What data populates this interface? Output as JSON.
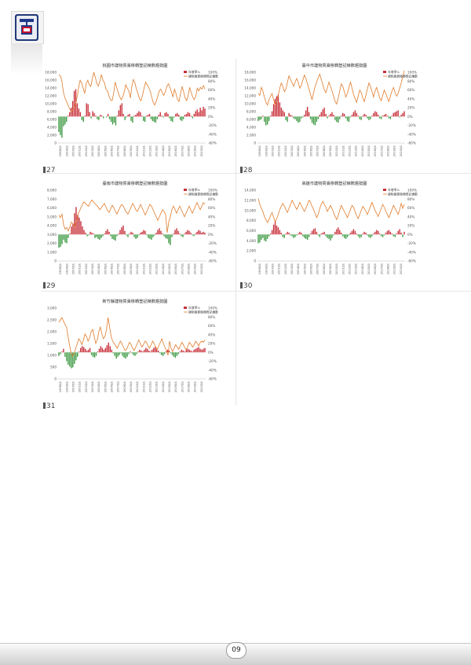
{
  "page": {
    "number": "09"
  },
  "chart_data": [
    {
      "type": "bar",
      "figure_label": "27",
      "title": "桃園市建物買賣移轉登記棟數趨勢圖",
      "legend": [
        "年增率%",
        "建物買賣移轉登記棟數"
      ],
      "y_left": [
        0,
        16000
      ],
      "y_left_ticks": [
        "0",
        "2,000",
        "4,000",
        "6,000",
        "8,000",
        "10,000",
        "12,000",
        "14,000",
        "16,000",
        "18,000"
      ],
      "y_right_ticks": [
        "-60%",
        "-40%",
        "-20%",
        "0%",
        "20%",
        "40%",
        "60%",
        "80%",
        "100%"
      ],
      "x_ticks": [
        "1998Q1",
        "1999Q1",
        "2000Q1",
        "2001Q1",
        "2002Q1",
        "2003Q1",
        "2004Q1",
        "2005Q1",
        "2006Q1",
        "2007Q1",
        "2008Q1",
        "2009Q1",
        "2010Q1",
        "2011Q1",
        "2012Q1",
        "2013Q1",
        "2014Q1",
        "2015Q1",
        "2016Q1",
        "2017Q1",
        "2018Q1",
        "2019Q1",
        "2020Q1"
      ],
      "line": [
        15500,
        15200,
        14000,
        11500,
        10200,
        9500,
        8600,
        7800,
        7200,
        7400,
        8000,
        8800,
        10400,
        12600,
        14200,
        13600,
        12400,
        11200,
        13500,
        14200,
        13200,
        12800,
        14500,
        16000,
        14800,
        13500,
        12900,
        14000,
        15500,
        14200,
        13600,
        12200,
        11800,
        10600,
        9800,
        9600,
        11200,
        13800,
        12600,
        11400,
        10500,
        9800,
        10400,
        11600,
        13200,
        12400,
        11800,
        10200,
        12800,
        14400,
        13600,
        12200,
        11200,
        10000,
        9600,
        10800,
        12400,
        13800,
        13200,
        12600,
        11800,
        10500,
        9200,
        8600,
        9400,
        10600,
        11800,
        12200,
        11400,
        10800,
        11600,
        12800,
        13400,
        12600,
        11600,
        10400,
        12200,
        11200,
        9800,
        9400,
        11200,
        12800,
        11600,
        10200,
        9600,
        10800,
        12600,
        11400,
        10400,
        9800,
        10600,
        12400,
        11800,
        12600,
        12200,
        13000,
        12200
      ],
      "bars": [
        -35,
        -42,
        -48,
        -22,
        -18,
        -12,
        2,
        10,
        20,
        35,
        58,
        62,
        30,
        18,
        10,
        -8,
        -12,
        2,
        30,
        28,
        10,
        -4,
        12,
        8,
        2,
        -6,
        -8,
        4,
        2,
        -4,
        0,
        -2,
        6,
        -6,
        -12,
        -18,
        -14,
        -20,
        2,
        14,
        26,
        30,
        6,
        -8,
        -2,
        4,
        6,
        -10,
        -14,
        2,
        4,
        8,
        12,
        10,
        2,
        -10,
        -12,
        2,
        4,
        6,
        -6,
        -10,
        -12,
        -14,
        -6,
        4,
        10,
        2,
        -2,
        8,
        10,
        6,
        -4,
        -10,
        -12,
        -2,
        6,
        8,
        4,
        -8,
        -10,
        -6,
        4,
        6,
        10,
        8,
        2,
        -4,
        6,
        12,
        16,
        10,
        20,
        14,
        22,
        18
      ]
    },
    {
      "type": "bar",
      "figure_label": "28",
      "title": "臺中市建物買賣移轉登記棟數趨勢圖",
      "legend": [
        "年增率%",
        "建物買賣移轉登記棟數"
      ],
      "y_left": [
        0,
        16000
      ],
      "y_left_ticks": [
        "0",
        "2,000",
        "4,000",
        "6,000",
        "8,000",
        "10,000",
        "12,000",
        "14,000",
        "16,000",
        "18,000"
      ],
      "y_right_ticks": [
        "-60%",
        "-40%",
        "-20%",
        "0%",
        "20%",
        "40%",
        "60%",
        "80%",
        "100%"
      ],
      "x_ticks": [
        "1998Q1",
        "1999Q1",
        "2000Q1",
        "2001Q1",
        "2002Q1",
        "2003Q1",
        "2004Q1",
        "2005Q1",
        "2006Q1",
        "2007Q1",
        "2008Q1",
        "2009Q1",
        "2010Q1",
        "2011Q1",
        "2012Q1",
        "2013Q1",
        "2014Q1",
        "2015Q1",
        "2016Q1",
        "2017Q1",
        "2018Q1",
        "2019Q1",
        "2020Q1"
      ],
      "line": [
        11200,
        10800,
        12600,
        11800,
        10400,
        9200,
        8600,
        9800,
        10600,
        11200,
        9800,
        8600,
        9400,
        10800,
        12400,
        13600,
        12800,
        11600,
        12200,
        13800,
        15200,
        14400,
        13600,
        12800,
        13800,
        14600,
        13800,
        12400,
        13000,
        14200,
        15400,
        14600,
        13400,
        12200,
        11000,
        9800,
        11400,
        12800,
        13800,
        14800,
        15600,
        14400,
        13200,
        12000,
        11400,
        12600,
        13800,
        12800,
        11800,
        10600,
        9400,
        8800,
        10200,
        11800,
        13400,
        12800,
        11600,
        10400,
        11200,
        12600,
        13800,
        12400,
        11000,
        10000,
        9200,
        10600,
        12000,
        11400,
        10200,
        9400,
        10800,
        12200,
        13600,
        12800,
        11600,
        10400,
        11800,
        12600,
        11400,
        10200,
        9600,
        10800,
        12000,
        11200,
        10200,
        9400,
        10600,
        11800,
        12600,
        11400,
        10600,
        11200,
        12400,
        13600,
        15000,
        16400
      ],
      "bars": [
        -10,
        -8,
        -6,
        2,
        -12,
        -20,
        -18,
        -10,
        2,
        12,
        28,
        40,
        46,
        50,
        32,
        20,
        14,
        10,
        -8,
        -12,
        8,
        4,
        2,
        -4,
        -6,
        -10,
        -14,
        -12,
        -4,
        -2,
        4,
        14,
        22,
        10,
        -6,
        -14,
        -18,
        -20,
        -12,
        -6,
        4,
        10,
        16,
        20,
        6,
        -4,
        2,
        6,
        10,
        4,
        -8,
        -12,
        -14,
        -6,
        2,
        8,
        6,
        -4,
        -10,
        -12,
        -2,
        4,
        10,
        14,
        8,
        2,
        -6,
        -8,
        2,
        6,
        4,
        -4,
        -8,
        -6,
        2,
        8,
        12,
        10,
        4,
        -4,
        -6,
        2,
        4,
        6,
        2,
        -4,
        -6,
        2,
        8,
        10,
        12,
        14,
        -2,
        4,
        8,
        12
      ]
    },
    {
      "type": "bar",
      "figure_label": "29",
      "title": "臺南市建物買賣移轉登記棟數趨勢圖",
      "legend": [
        "年增率%",
        "建物買賣移轉登記棟數"
      ],
      "y_left": [
        0,
        8000
      ],
      "y_left_ticks": [
        "0",
        "1,000",
        "2,000",
        "3,000",
        "4,000",
        "5,000",
        "6,000",
        "7,000",
        "8,000"
      ],
      "y_right_ticks": [
        "-60%",
        "-40%",
        "-20%",
        "0%",
        "20%",
        "40%",
        "60%",
        "80%",
        "100%"
      ],
      "x_ticks": [
        "1998Q1",
        "1999Q1",
        "2000Q1",
        "2001Q1",
        "2002Q1",
        "2003Q1",
        "2004Q1",
        "2005Q1",
        "2006Q1",
        "2007Q1",
        "2008Q1",
        "2009Q1",
        "2010Q1",
        "2011Q1",
        "2012Q1",
        "2013Q1",
        "2014Q1",
        "2015Q1",
        "2016Q1",
        "2017Q1",
        "2018Q1",
        "2019Q1",
        "2020Q1"
      ],
      "line": [
        5200,
        4900,
        5300,
        4100,
        3600,
        3800,
        3400,
        3900,
        4400,
        4200,
        3800,
        4500,
        5200,
        5600,
        6000,
        6400,
        6700,
        6500,
        6300,
        6200,
        6600,
        6900,
        6700,
        6500,
        6300,
        6100,
        5800,
        6000,
        6300,
        6500,
        6100,
        5700,
        5500,
        5900,
        6300,
        6000,
        5600,
        5300,
        5700,
        6100,
        6400,
        6200,
        5800,
        5500,
        5300,
        5700,
        6100,
        6500,
        6200,
        5800,
        5600,
        6000,
        6400,
        6000,
        5600,
        5200,
        5600,
        6000,
        6400,
        6200,
        5800,
        5400,
        5000,
        4600,
        5000,
        5400,
        5800,
        5600,
        5200,
        3200,
        4400,
        5000,
        5800,
        6200,
        5800,
        5400,
        5800,
        6200,
        5800,
        5400,
        5000,
        5400,
        5800,
        6200,
        5800,
        5400,
        5800,
        6200,
        6600,
        6200,
        5800,
        6200,
        6600,
        6400
      ],
      "bars": [
        -30,
        -28,
        -22,
        -12,
        -18,
        -20,
        -8,
        2,
        18,
        24,
        48,
        62,
        44,
        38,
        30,
        18,
        10,
        4,
        -4,
        -2,
        6,
        4,
        2,
        -8,
        -6,
        -10,
        -12,
        -8,
        -4,
        2,
        8,
        12,
        6,
        -4,
        -10,
        -12,
        -14,
        -4,
        2,
        10,
        16,
        20,
        8,
        -2,
        -6,
        2,
        6,
        4,
        -6,
        -10,
        -8,
        -2,
        4,
        6,
        10,
        8,
        -2,
        -8,
        -10,
        -12,
        -6,
        -2,
        4,
        10,
        14,
        8,
        2,
        -4,
        -8,
        -10,
        -20,
        -24,
        -6,
        2,
        10,
        14,
        8,
        2,
        -4,
        -6,
        2,
        6,
        10,
        8,
        4,
        -2,
        -4,
        2,
        6,
        10,
        8,
        4,
        6,
        4
      ]
    },
    {
      "type": "bar",
      "figure_label": "30",
      "title": "高雄市建物買賣移轉登記棟數趨勢圖",
      "legend": [
        "年增率%",
        "建物買賣移轉登記棟數"
      ],
      "y_left": [
        0,
        14000
      ],
      "y_left_ticks": [
        "0",
        "2,000",
        "4,000",
        "6,000",
        "8,000",
        "10,000",
        "12,000",
        "14,000"
      ],
      "y_right_ticks": [
        "-60%",
        "-40%",
        "-20%",
        "0%",
        "20%",
        "40%",
        "60%",
        "80%",
        "100%"
      ],
      "x_ticks": [
        "1998Q1",
        "1999Q1",
        "2000Q1",
        "2001Q1",
        "2002Q1",
        "2003Q1",
        "2004Q1",
        "2005Q1",
        "2006Q1",
        "2007Q1",
        "2008Q1",
        "2009Q1",
        "2010Q1",
        "2011Q1",
        "2012Q1",
        "2013Q1",
        "2014Q1",
        "2015Q1",
        "2016Q1",
        "2017Q1",
        "2018Q1",
        "2019Q1",
        "2020Q1"
      ],
      "line": [
        12400,
        11200,
        10400,
        9800,
        8800,
        8200,
        7600,
        8200,
        9000,
        9600,
        8600,
        7800,
        8400,
        9200,
        10200,
        10800,
        11400,
        10800,
        10200,
        9600,
        10400,
        11200,
        12000,
        11400,
        10800,
        10200,
        10800,
        11600,
        11000,
        10400,
        9800,
        10400,
        11200,
        12000,
        11600,
        10800,
        10200,
        9400,
        8600,
        9200,
        10400,
        11200,
        11800,
        11200,
        10600,
        9800,
        10400,
        11000,
        10400,
        9600,
        8800,
        8200,
        9000,
        10000,
        11000,
        10400,
        9800,
        9200,
        8600,
        9400,
        10200,
        11000,
        10600,
        9800,
        9000,
        8400,
        9200,
        10000,
        10800,
        10400,
        9800,
        9200,
        10000,
        10800,
        11600,
        10800,
        10000,
        9400,
        8800,
        9600,
        10400,
        11200,
        10600,
        9800,
        9200,
        8600,
        9400,
        10200,
        11000,
        10400,
        9800,
        9200,
        10200,
        11400,
        10400,
        11200
      ],
      "bars": [
        -20,
        -18,
        -12,
        -8,
        -14,
        -16,
        -10,
        -4,
        2,
        10,
        22,
        30,
        20,
        16,
        10,
        4,
        -6,
        -8,
        2,
        6,
        4,
        -2,
        -4,
        -8,
        -6,
        -2,
        2,
        6,
        4,
        -4,
        -8,
        -10,
        -12,
        -6,
        2,
        8,
        12,
        14,
        6,
        -2,
        -6,
        2,
        4,
        6,
        -4,
        -8,
        -10,
        -14,
        -8,
        -2,
        6,
        12,
        16,
        10,
        4,
        -4,
        -8,
        -10,
        -6,
        -2,
        4,
        8,
        12,
        8,
        2,
        -4,
        -8,
        -6,
        2,
        6,
        4,
        -2,
        -6,
        -8,
        -4,
        2,
        6,
        10,
        8,
        2,
        -4,
        -6,
        -2,
        4,
        8,
        10,
        6,
        2,
        -4,
        -6,
        2,
        8,
        12,
        4,
        -6,
        6
      ]
    },
    {
      "type": "bar",
      "figure_label": "31",
      "title": "新竹縣建物買賣移轉登記棟數趨勢圖",
      "legend": [
        "年增率%",
        "建物買賣移轉登記棟數"
      ],
      "y_left": [
        0,
        3000
      ],
      "y_left_ticks": [
        "0",
        "500",
        "1,000",
        "1,500",
        "2,000",
        "2,500",
        "3,000"
      ],
      "y_right_ticks": [
        "-60%",
        "-40%",
        "-20%",
        "0%",
        "20%",
        "40%",
        "60%",
        "80%",
        "100%"
      ],
      "x_ticks": [
        "1998Q1",
        "1999Q1",
        "2000Q1",
        "2001Q1",
        "2002Q1",
        "2003Q1",
        "2004Q1",
        "2005Q1",
        "2006Q1",
        "2007Q1",
        "2008Q1",
        "2009Q1",
        "2010Q1",
        "2011Q1",
        "2012Q1",
        "2013Q1",
        "2014Q1",
        "2015Q1",
        "2016Q1",
        "2017Q1",
        "2018Q1",
        "2019Q1",
        "2020Q1"
      ],
      "line": [
        2400,
        2500,
        2600,
        2450,
        2300,
        2200,
        1800,
        1400,
        1100,
        950,
        1100,
        1300,
        1500,
        1700,
        1600,
        1450,
        1650,
        1900,
        1800,
        1600,
        1750,
        2000,
        2100,
        1800,
        1500,
        1650,
        2000,
        2200,
        1900,
        1700,
        1800,
        2100,
        2600,
        2200,
        1800,
        1600,
        1500,
        1400,
        1300,
        1450,
        1600,
        1500,
        1350,
        1200,
        1250,
        1400,
        1550,
        1450,
        1300,
        1200,
        1350,
        1500,
        1650,
        1500,
        1350,
        1450,
        1600,
        1550,
        1400,
        1300,
        1450,
        1600,
        1500,
        1350,
        1250,
        1400,
        1550,
        1700,
        1500,
        1350,
        1200,
        1000,
        1600,
        1300,
        1150,
        1300,
        1450,
        1350,
        1250,
        1400,
        1550,
        1450,
        1300,
        1250,
        1400,
        1550,
        1450,
        1350,
        1450,
        1600,
        1500,
        1400,
        1550,
        1600,
        1550,
        1650
      ],
      "bars": [
        -8,
        -4,
        2,
        8,
        -10,
        -20,
        -28,
        -32,
        -36,
        -34,
        -26,
        -18,
        -10,
        2,
        10,
        14,
        12,
        8,
        4,
        6,
        10,
        -6,
        -10,
        -12,
        -8,
        2,
        8,
        14,
        10,
        6,
        10,
        16,
        22,
        14,
        6,
        -2,
        -8,
        -14,
        -10,
        -6,
        -2,
        -8,
        -12,
        -14,
        -10,
        -4,
        2,
        -2,
        -6,
        -8,
        -4,
        2,
        6,
        4,
        2,
        6,
        10,
        8,
        4,
        2,
        6,
        10,
        12,
        8,
        4,
        -2,
        -6,
        -8,
        -4,
        2,
        6,
        4,
        -2,
        -6,
        -10,
        -12,
        -8,
        -4,
        2,
        6,
        4,
        2,
        6,
        8,
        6,
        4,
        2,
        6,
        8,
        10,
        12,
        8,
        6,
        8,
        10
      ]
    }
  ]
}
